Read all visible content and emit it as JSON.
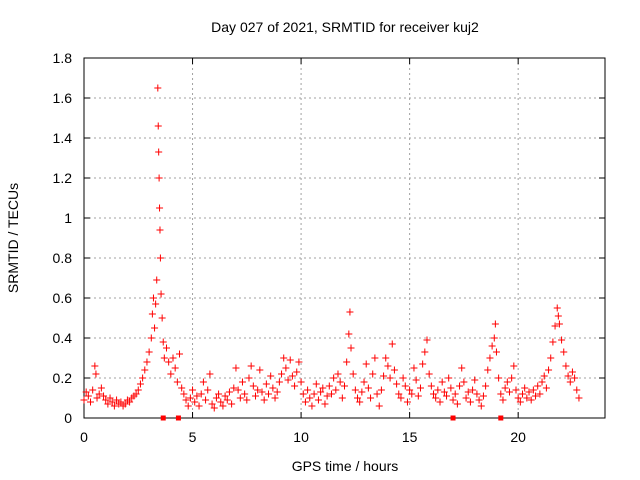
{
  "chart_data": {
    "type": "scatter",
    "title": "Day 027 of 2021, SRMTID for receiver kuj2",
    "xlabel": "GPS time / hours",
    "ylabel": "SRMTID / TECUs",
    "xlim": [
      0,
      24
    ],
    "ylim": [
      0,
      1.8
    ],
    "x_ticks": [
      0,
      5,
      10,
      15,
      20
    ],
    "x_tick_labels": [
      "0",
      "5",
      "10",
      "15",
      "20"
    ],
    "y_ticks": [
      0,
      0.2,
      0.4,
      0.6,
      0.8,
      1,
      1.2,
      1.4,
      1.6,
      1.8
    ],
    "y_tick_labels": [
      "0",
      "0.2",
      "0.4",
      "0.6",
      "0.8",
      "1",
      "1.2",
      "1.4",
      "1.6",
      "1.8"
    ],
    "grid": true,
    "marker": "+",
    "series_color": "#ff0000",
    "series": [
      {
        "name": "SRMTID",
        "points": [
          [
            0.0,
            0.09
          ],
          [
            0.1,
            0.13
          ],
          [
            0.2,
            0.11
          ],
          [
            0.3,
            0.08
          ],
          [
            0.4,
            0.14
          ],
          [
            0.5,
            0.26
          ],
          [
            0.55,
            0.22
          ],
          [
            0.6,
            0.1
          ],
          [
            0.7,
            0.12
          ],
          [
            0.8,
            0.15
          ],
          [
            0.9,
            0.11
          ],
          [
            1.0,
            0.09
          ],
          [
            1.1,
            0.07
          ],
          [
            1.2,
            0.1
          ],
          [
            1.3,
            0.08
          ],
          [
            1.4,
            0.06
          ],
          [
            1.5,
            0.09
          ],
          [
            1.6,
            0.07
          ],
          [
            1.7,
            0.08
          ],
          [
            1.8,
            0.06
          ],
          [
            1.9,
            0.07
          ],
          [
            2.0,
            0.09
          ],
          [
            2.1,
            0.08
          ],
          [
            2.2,
            0.1
          ],
          [
            2.3,
            0.11
          ],
          [
            2.4,
            0.12
          ],
          [
            2.5,
            0.14
          ],
          [
            2.6,
            0.17
          ],
          [
            2.7,
            0.2
          ],
          [
            2.8,
            0.24
          ],
          [
            2.9,
            0.28
          ],
          [
            3.0,
            0.33
          ],
          [
            3.1,
            0.4
          ],
          [
            3.15,
            0.52
          ],
          [
            3.2,
            0.6
          ],
          [
            3.25,
            0.45
          ],
          [
            3.3,
            0.57
          ],
          [
            3.35,
            0.69
          ],
          [
            3.4,
            1.65
          ],
          [
            3.42,
            1.46
          ],
          [
            3.44,
            1.33
          ],
          [
            3.46,
            1.2
          ],
          [
            3.48,
            1.05
          ],
          [
            3.5,
            0.94
          ],
          [
            3.52,
            0.8
          ],
          [
            3.55,
            0.62
          ],
          [
            3.6,
            0.5
          ],
          [
            3.65,
            0.38
          ],
          [
            3.7,
            0.3
          ],
          [
            3.8,
            0.35
          ],
          [
            3.9,
            0.28
          ],
          [
            4.0,
            0.22
          ],
          [
            4.1,
            0.3
          ],
          [
            4.2,
            0.25
          ],
          [
            4.3,
            0.18
          ],
          [
            4.4,
            0.32
          ],
          [
            4.5,
            0.15
          ],
          [
            4.6,
            0.12
          ],
          [
            4.7,
            0.09
          ],
          [
            4.8,
            0.06
          ],
          [
            4.9,
            0.1
          ],
          [
            5.0,
            0.14
          ],
          [
            5.1,
            0.08
          ],
          [
            5.2,
            0.11
          ],
          [
            5.3,
            0.06
          ],
          [
            5.4,
            0.12
          ],
          [
            5.5,
            0.18
          ],
          [
            5.6,
            0.09
          ],
          [
            5.7,
            0.14
          ],
          [
            5.8,
            0.22
          ],
          [
            5.9,
            0.07
          ],
          [
            6.0,
            0.05
          ],
          [
            6.1,
            0.1
          ],
          [
            6.2,
            0.12
          ],
          [
            6.3,
            0.08
          ],
          [
            6.4,
            0.06
          ],
          [
            6.5,
            0.11
          ],
          [
            6.6,
            0.09
          ],
          [
            6.7,
            0.13
          ],
          [
            6.8,
            0.07
          ],
          [
            6.9,
            0.15
          ],
          [
            7.0,
            0.25
          ],
          [
            7.1,
            0.14
          ],
          [
            7.2,
            0.1
          ],
          [
            7.3,
            0.18
          ],
          [
            7.4,
            0.12
          ],
          [
            7.5,
            0.09
          ],
          [
            7.6,
            0.2
          ],
          [
            7.7,
            0.26
          ],
          [
            7.8,
            0.16
          ],
          [
            7.9,
            0.11
          ],
          [
            8.0,
            0.14
          ],
          [
            8.1,
            0.24
          ],
          [
            8.2,
            0.13
          ],
          [
            8.3,
            0.09
          ],
          [
            8.4,
            0.17
          ],
          [
            8.5,
            0.12
          ],
          [
            8.6,
            0.21
          ],
          [
            8.7,
            0.15
          ],
          [
            8.8,
            0.1
          ],
          [
            8.9,
            0.13
          ],
          [
            9.0,
            0.18
          ],
          [
            9.1,
            0.22
          ],
          [
            9.2,
            0.3
          ],
          [
            9.3,
            0.25
          ],
          [
            9.4,
            0.19
          ],
          [
            9.5,
            0.29
          ],
          [
            9.6,
            0.21
          ],
          [
            9.7,
            0.16
          ],
          [
            9.8,
            0.23
          ],
          [
            9.9,
            0.28
          ],
          [
            10.0,
            0.18
          ],
          [
            10.1,
            0.12
          ],
          [
            10.2,
            0.08
          ],
          [
            10.3,
            0.14
          ],
          [
            10.4,
            0.1
          ],
          [
            10.5,
            0.06
          ],
          [
            10.6,
            0.12
          ],
          [
            10.7,
            0.17
          ],
          [
            10.8,
            0.09
          ],
          [
            10.9,
            0.13
          ],
          [
            11.0,
            0.15
          ],
          [
            11.1,
            0.07
          ],
          [
            11.2,
            0.11
          ],
          [
            11.3,
            0.16
          ],
          [
            11.4,
            0.12
          ],
          [
            11.5,
            0.2
          ],
          [
            11.6,
            0.14
          ],
          [
            11.7,
            0.22
          ],
          [
            11.8,
            0.18
          ],
          [
            11.9,
            0.1
          ],
          [
            12.0,
            0.16
          ],
          [
            12.1,
            0.28
          ],
          [
            12.2,
            0.42
          ],
          [
            12.25,
            0.53
          ],
          [
            12.3,
            0.35
          ],
          [
            12.4,
            0.22
          ],
          [
            12.5,
            0.14
          ],
          [
            12.6,
            0.1
          ],
          [
            12.7,
            0.08
          ],
          [
            12.8,
            0.13
          ],
          [
            12.9,
            0.18
          ],
          [
            13.0,
            0.27
          ],
          [
            13.1,
            0.15
          ],
          [
            13.2,
            0.1
          ],
          [
            13.3,
            0.22
          ],
          [
            13.4,
            0.3
          ],
          [
            13.5,
            0.12
          ],
          [
            13.6,
            0.06
          ],
          [
            13.7,
            0.14
          ],
          [
            13.8,
            0.21
          ],
          [
            13.9,
            0.3
          ],
          [
            14.0,
            0.26
          ],
          [
            14.1,
            0.2
          ],
          [
            14.2,
            0.37
          ],
          [
            14.3,
            0.24
          ],
          [
            14.4,
            0.17
          ],
          [
            14.5,
            0.12
          ],
          [
            14.6,
            0.1
          ],
          [
            14.7,
            0.2
          ],
          [
            14.8,
            0.16
          ],
          [
            14.9,
            0.08
          ],
          [
            15.0,
            0.14
          ],
          [
            15.1,
            0.12
          ],
          [
            15.2,
            0.25
          ],
          [
            15.3,
            0.19
          ],
          [
            15.4,
            0.11
          ],
          [
            15.5,
            0.15
          ],
          [
            15.6,
            0.27
          ],
          [
            15.7,
            0.33
          ],
          [
            15.8,
            0.39
          ],
          [
            15.9,
            0.22
          ],
          [
            16.0,
            0.16
          ],
          [
            16.1,
            0.12
          ],
          [
            16.2,
            0.1
          ],
          [
            16.3,
            0.14
          ],
          [
            16.4,
            0.08
          ],
          [
            16.5,
            0.18
          ],
          [
            16.6,
            0.13
          ],
          [
            16.7,
            0.11
          ],
          [
            16.8,
            0.2
          ],
          [
            16.9,
            0.15
          ],
          [
            17.0,
            0.09
          ],
          [
            17.1,
            0.12
          ],
          [
            17.2,
            0.07
          ],
          [
            17.3,
            0.16
          ],
          [
            17.4,
            0.25
          ],
          [
            17.5,
            0.18
          ],
          [
            17.6,
            0.1
          ],
          [
            17.7,
            0.13
          ],
          [
            17.8,
            0.08
          ],
          [
            17.9,
            0.14
          ],
          [
            18.0,
            0.19
          ],
          [
            18.1,
            0.12
          ],
          [
            18.2,
            0.09
          ],
          [
            18.3,
            0.06
          ],
          [
            18.4,
            0.11
          ],
          [
            18.5,
            0.16
          ],
          [
            18.6,
            0.24
          ],
          [
            18.7,
            0.3
          ],
          [
            18.8,
            0.36
          ],
          [
            18.9,
            0.4
          ],
          [
            18.95,
            0.47
          ],
          [
            19.0,
            0.33
          ],
          [
            19.1,
            0.2
          ],
          [
            19.2,
            0.12
          ],
          [
            19.3,
            0.09
          ],
          [
            19.4,
            0.15
          ],
          [
            19.5,
            0.18
          ],
          [
            19.6,
            0.13
          ],
          [
            19.7,
            0.2
          ],
          [
            19.8,
            0.26
          ],
          [
            19.9,
            0.14
          ],
          [
            20.0,
            0.1
          ],
          [
            20.1,
            0.08
          ],
          [
            20.2,
            0.12
          ],
          [
            20.3,
            0.15
          ],
          [
            20.4,
            0.1
          ],
          [
            20.5,
            0.13
          ],
          [
            20.6,
            0.09
          ],
          [
            20.7,
            0.14
          ],
          [
            20.8,
            0.11
          ],
          [
            20.9,
            0.16
          ],
          [
            21.0,
            0.12
          ],
          [
            21.1,
            0.18
          ],
          [
            21.2,
            0.21
          ],
          [
            21.3,
            0.15
          ],
          [
            21.4,
            0.24
          ],
          [
            21.5,
            0.3
          ],
          [
            21.6,
            0.38
          ],
          [
            21.7,
            0.46
          ],
          [
            21.8,
            0.55
          ],
          [
            21.85,
            0.51
          ],
          [
            21.9,
            0.47
          ],
          [
            22.0,
            0.39
          ],
          [
            22.1,
            0.33
          ],
          [
            22.2,
            0.26
          ],
          [
            22.3,
            0.21
          ],
          [
            22.4,
            0.18
          ],
          [
            22.5,
            0.23
          ],
          [
            22.6,
            0.2
          ],
          [
            22.7,
            0.14
          ],
          [
            22.8,
            0.1
          ]
        ],
        "markers_on_axis": [
          3.65,
          4.35,
          17.0,
          19.2
        ]
      }
    ]
  }
}
